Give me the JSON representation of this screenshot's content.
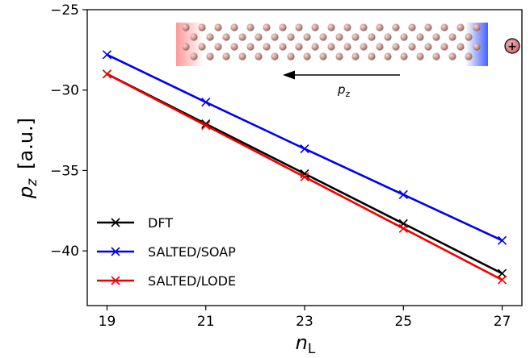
{
  "chart_data": {
    "type": "line",
    "xlabel_main": "n",
    "xlabel_sub": "L",
    "ylabel_main": "p",
    "ylabel_sub": "z",
    "ylabel_unit": "[a.u.]",
    "xlim": [
      18.6,
      27.4
    ],
    "ylim": [
      -43.4,
      -25
    ],
    "xticks": [
      19,
      21,
      23,
      25,
      27
    ],
    "yticks": [
      -25,
      -30,
      -35,
      -40
    ],
    "ytick_labels": [
      "−25",
      "−30",
      "−35",
      "−40"
    ],
    "grid": false,
    "legend_position": "lower-left",
    "marker": "x",
    "series": [
      {
        "name": "DFT",
        "color": "#000000",
        "x": [
          19,
          21,
          23,
          25,
          27
        ],
        "y": [
          -29.0,
          -32.1,
          -35.2,
          -38.3,
          -41.4
        ]
      },
      {
        "name": "SALTED/SOAP",
        "color": "#0000ee",
        "x": [
          19,
          21,
          23,
          25,
          27
        ],
        "y": [
          -27.8,
          -30.75,
          -33.65,
          -36.5,
          -39.35
        ]
      },
      {
        "name": "SALTED/LODE",
        "color": "#ee0000",
        "x": [
          19,
          21,
          23,
          25,
          27
        ],
        "y": [
          -29.0,
          -32.2,
          -35.4,
          -38.6,
          -41.8
        ]
      }
    ],
    "inset": {
      "arrow_label_main": "p",
      "arrow_label_sub": "z",
      "ion_symbol": "+"
    }
  }
}
